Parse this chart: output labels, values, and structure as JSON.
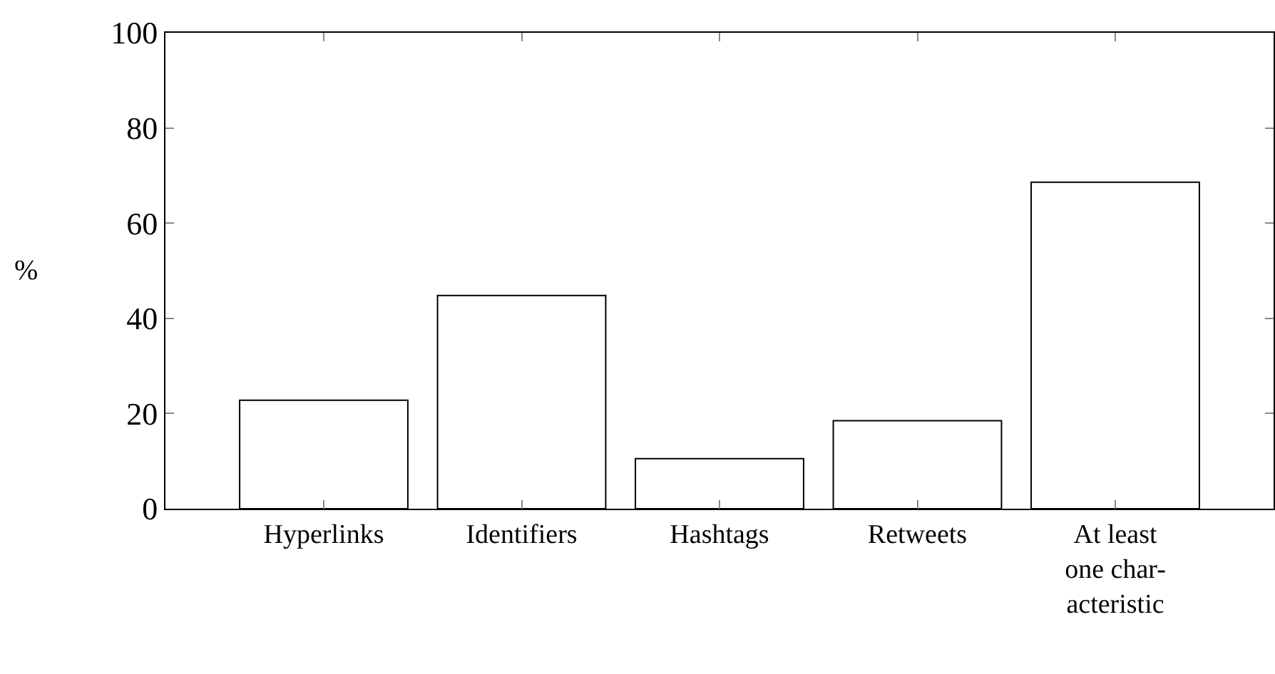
{
  "chart_data": {
    "type": "bar",
    "ylabel": "%",
    "categories": [
      "Hyperlinks",
      "Identifiers",
      "Hashtags",
      "Retweets",
      "At least\none char-\nacteristic"
    ],
    "values": [
      22.8,
      44.8,
      10.5,
      18.5,
      68.6
    ],
    "color": "#ffffff",
    "ylim": [
      0,
      100
    ],
    "yticks": [
      0,
      20,
      40,
      60,
      80,
      100
    ]
  }
}
